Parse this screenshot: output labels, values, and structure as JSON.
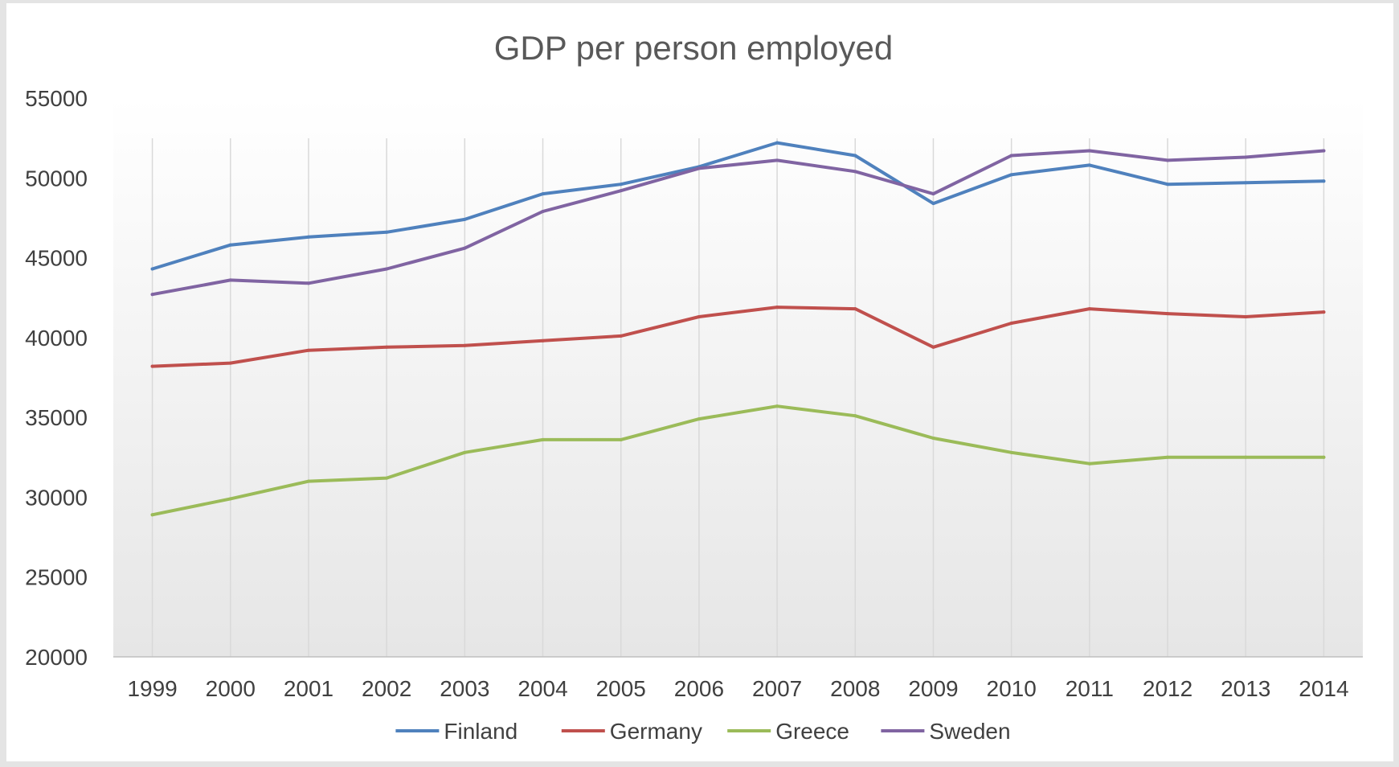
{
  "chart_data": {
    "type": "line",
    "title": "GDP per person employed",
    "xlabel": "",
    "ylabel": "",
    "categories": [
      "1999",
      "2000",
      "2001",
      "2002",
      "2003",
      "2004",
      "2005",
      "2006",
      "2007",
      "2008",
      "2009",
      "2010",
      "2011",
      "2012",
      "2013",
      "2014"
    ],
    "ylim": [
      20000,
      55000
    ],
    "yticks": [
      20000,
      25000,
      30000,
      35000,
      40000,
      45000,
      50000,
      55000
    ],
    "grid": "vertical",
    "legend_position": "bottom",
    "series": [
      {
        "name": "Finland",
        "color": "#4f81bd",
        "values": [
          44300,
          45800,
          46300,
          46600,
          47400,
          49000,
          49600,
          50700,
          52200,
          51400,
          48400,
          50200,
          50800,
          49600,
          49700,
          49800
        ]
      },
      {
        "name": "Germany",
        "color": "#c0504d",
        "values": [
          38200,
          38400,
          39200,
          39400,
          39500,
          39800,
          40100,
          41300,
          41900,
          41800,
          39400,
          40900,
          41800,
          41500,
          41300,
          41600
        ]
      },
      {
        "name": "Greece",
        "color": "#9bbb59",
        "values": [
          28900,
          29900,
          31000,
          31200,
          32800,
          33600,
          33600,
          34900,
          35700,
          35100,
          33700,
          32800,
          32100,
          32500,
          32500,
          32500
        ]
      },
      {
        "name": "Sweden",
        "color": "#8064a2",
        "values": [
          42700,
          43600,
          43400,
          44300,
          45600,
          47900,
          49200,
          50600,
          51100,
          50400,
          49000,
          51400,
          51700,
          51100,
          51300,
          51700
        ]
      }
    ]
  }
}
